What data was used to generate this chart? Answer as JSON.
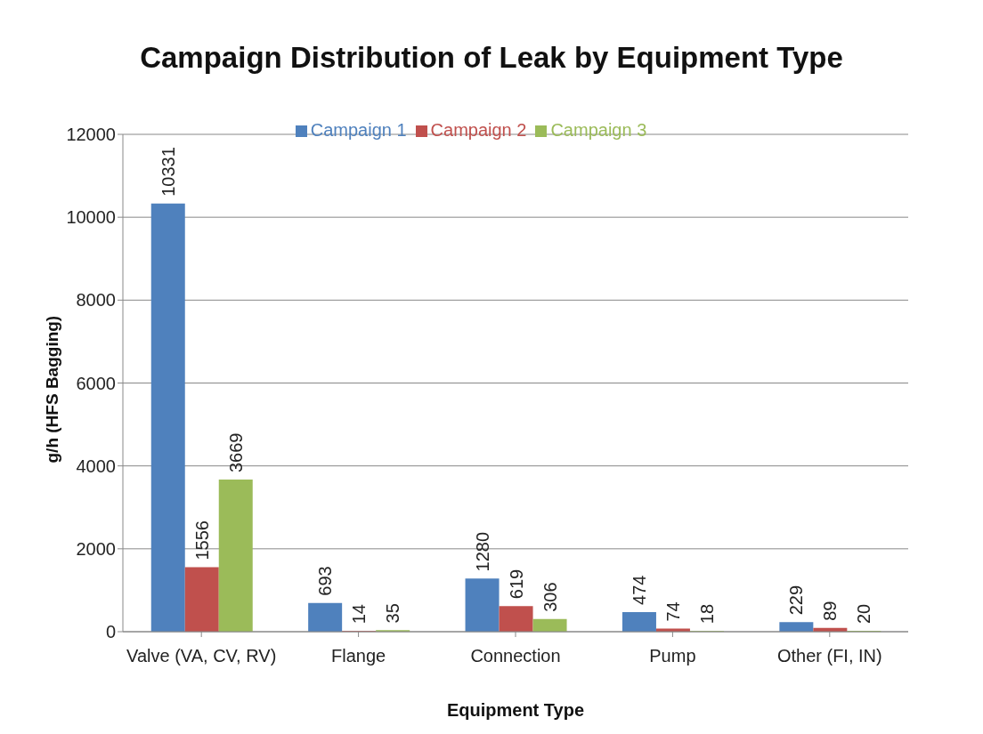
{
  "chart_data": {
    "type": "bar",
    "title": "Campaign Distribution of Leak by Equipment Type",
    "xlabel": "Equipment Type",
    "ylabel": "g/h (HFS Bagging)",
    "categories": [
      "Valve (VA, CV, RV)",
      "Flange",
      "Connection",
      "Pump",
      "Other (FI, IN)"
    ],
    "series": [
      {
        "name": "Campaign 1",
        "color": "#4f81bd",
        "values": [
          10331,
          693,
          1280,
          474,
          229
        ]
      },
      {
        "name": "Campaign 2",
        "color": "#c0504d",
        "values": [
          1556,
          14,
          619,
          74,
          89
        ]
      },
      {
        "name": "Campaign 3",
        "color": "#9bbb59",
        "values": [
          3669,
          35,
          306,
          18,
          20
        ]
      }
    ],
    "ylim": [
      0,
      12000
    ],
    "yticks": [
      0,
      2000,
      4000,
      6000,
      8000,
      10000,
      12000
    ],
    "grid": "y",
    "legend": "top",
    "data_labels": true
  }
}
